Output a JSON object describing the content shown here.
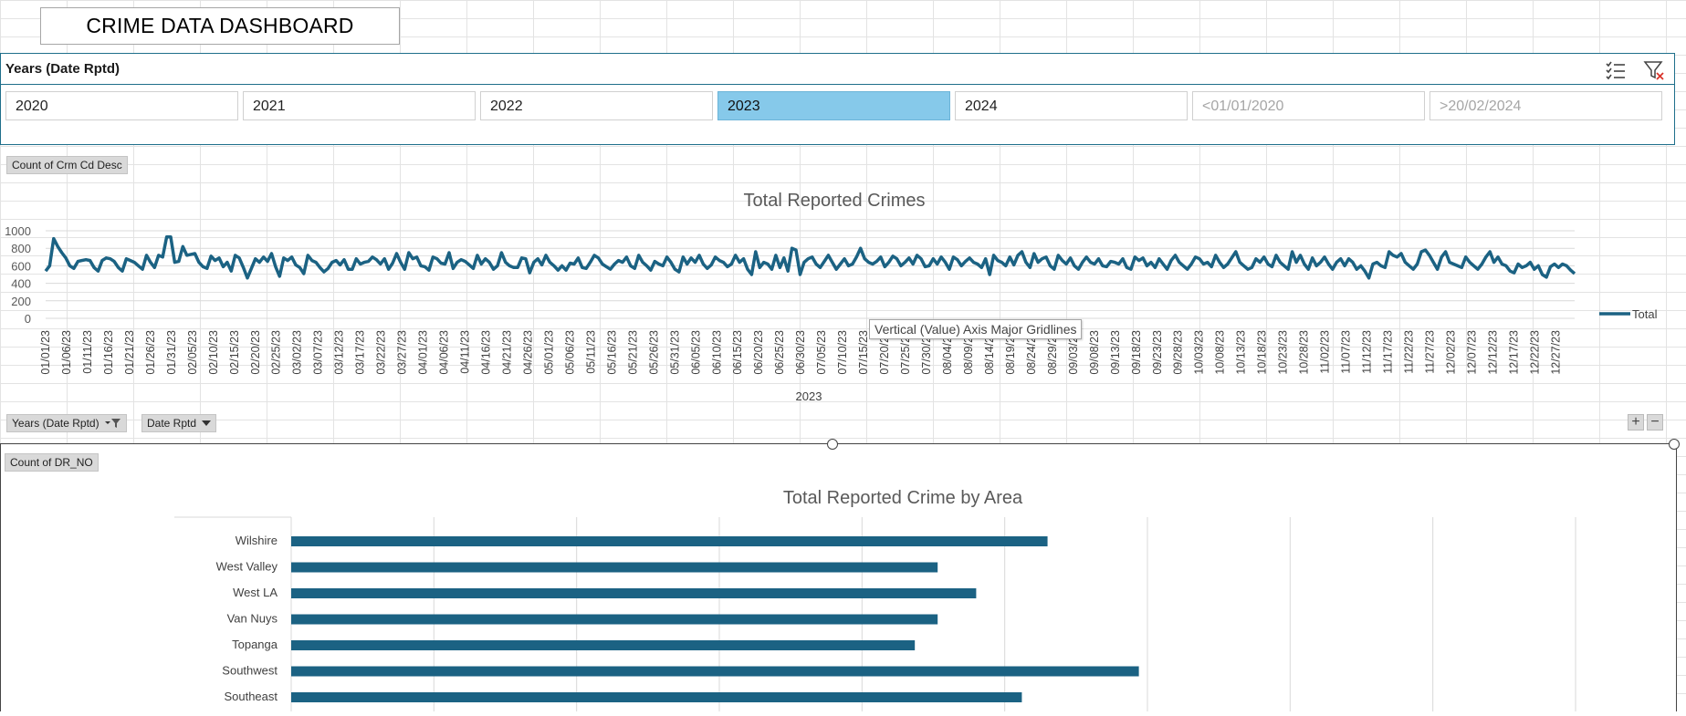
{
  "dashboard_title": "CRIME DATA DASHBOARD",
  "slicer": {
    "header": "Years (Date Rptd)",
    "multi_select_icon": "multi-select-icon",
    "clear_filter_icon": "clear-filter-icon",
    "items": [
      {
        "label": "2020",
        "selected": false,
        "dim": false
      },
      {
        "label": "2021",
        "selected": false,
        "dim": false
      },
      {
        "label": "2022",
        "selected": false,
        "dim": false
      },
      {
        "label": "2023",
        "selected": true,
        "dim": false
      },
      {
        "label": "2024",
        "selected": false,
        "dim": false
      },
      {
        "label": "<01/01/2020",
        "selected": false,
        "dim": true
      },
      {
        "label": ">20/02/2024",
        "selected": false,
        "dim": true
      }
    ],
    "selected_color": "#86c9ea"
  },
  "pivot_fields": {
    "value_field_1": "Count of Crm Cd Desc",
    "row_field_years": "Years (Date Rptd)",
    "row_field_date": "Date Rptd",
    "value_field_2": "Count of DR_NO"
  },
  "tooltip_text": "Vertical (Value) Axis Major Gridlines",
  "colors": {
    "series": "#1b6283",
    "accent_border": "#1f6f8b",
    "selected_slicer": "#86c9ea"
  },
  "chart_data": [
    {
      "type": "line",
      "title": "Total Reported Crimes",
      "xlabel": "2023",
      "ylabel": "",
      "ylim": [
        0,
        1000
      ],
      "yticks": [
        0,
        200,
        400,
        600,
        800,
        1000
      ],
      "grid": true,
      "legend_position": "right",
      "x_start": "01/01/23",
      "x_end": "12/31/23",
      "x_tick_labels": [
        "01/01/23",
        "01/06/23",
        "01/11/23",
        "01/16/23",
        "01/21/23",
        "01/26/23",
        "01/31/23",
        "02/05/23",
        "02/10/23",
        "02/15/23",
        "02/20/23",
        "02/25/23",
        "03/02/23",
        "03/07/23",
        "03/12/23",
        "03/17/23",
        "03/22/23",
        "03/27/23",
        "04/01/23",
        "04/06/23",
        "04/11/23",
        "04/16/23",
        "04/21/23",
        "04/26/23",
        "05/01/23",
        "05/06/23",
        "05/11/23",
        "05/16/23",
        "05/21/23",
        "05/26/23",
        "05/31/23",
        "06/05/23",
        "06/10/23",
        "06/15/23",
        "06/20/23",
        "06/25/23",
        "06/30/23",
        "07/05/23",
        "07/10/23",
        "07/15/23",
        "07/20/23",
        "07/25/23",
        "07/30/23",
        "08/04/23",
        "08/09/23",
        "08/14/23",
        "08/19/23",
        "08/24/23",
        "08/29/23",
        "09/03/23",
        "09/08/23",
        "09/13/23",
        "09/18/23",
        "09/23/23",
        "09/28/23",
        "10/03/23",
        "10/08/23",
        "10/13/23",
        "10/18/23",
        "10/23/23",
        "10/28/23",
        "11/02/23",
        "11/07/23",
        "11/12/23",
        "11/17/23",
        "11/22/23",
        "11/27/23",
        "12/02/23",
        "12/07/23",
        "12/12/23",
        "12/17/23",
        "12/22/23",
        "12/27/23"
      ],
      "series": [
        {
          "name": "Total",
          "values": [
            540,
            600,
            910,
            820,
            750,
            690,
            600,
            570,
            650,
            660,
            670,
            660,
            580,
            540,
            660,
            690,
            680,
            650,
            580,
            540,
            680,
            660,
            640,
            600,
            560,
            720,
            640,
            580,
            720,
            700,
            930,
            930,
            640,
            650,
            820,
            720,
            730,
            740,
            640,
            590,
            570,
            710,
            660,
            690,
            590,
            640,
            540,
            720,
            690,
            580,
            460,
            570,
            680,
            640,
            700,
            650,
            740,
            590,
            480,
            690,
            660,
            700,
            610,
            580,
            510,
            720,
            660,
            640,
            580,
            530,
            570,
            640,
            660,
            610,
            670,
            560,
            560,
            680,
            620,
            640,
            650,
            700,
            670,
            620,
            680,
            560,
            630,
            740,
            640,
            560,
            750,
            680,
            700,
            600,
            590,
            550,
            700,
            680,
            630,
            620,
            750,
            570,
            640,
            670,
            650,
            610,
            570,
            720,
            620,
            680,
            640,
            560,
            600,
            750,
            640,
            600,
            580,
            580,
            690,
            680,
            520,
            640,
            680,
            610,
            720,
            640,
            600,
            550,
            600,
            550,
            630,
            620,
            690,
            580,
            570,
            640,
            720,
            690,
            620,
            590,
            560,
            620,
            660,
            640,
            700,
            600,
            570,
            720,
            640,
            600,
            550,
            650,
            620,
            600,
            700,
            640,
            560,
            530,
            700,
            620,
            690,
            640,
            720,
            620,
            570,
            610,
            700,
            660,
            640,
            590,
            620,
            720,
            640,
            680,
            560,
            500,
            760,
            580,
            640,
            620,
            560,
            720,
            580,
            690,
            540,
            800,
            780,
            500,
            640,
            680,
            700,
            620,
            580,
            650,
            720,
            640,
            560,
            620,
            680,
            600,
            620,
            700,
            800,
            680,
            640,
            620,
            650,
            700,
            590,
            640,
            710,
            680,
            600,
            640,
            690,
            620,
            720,
            680,
            590,
            600,
            680,
            620,
            700,
            640,
            560,
            700,
            670,
            600,
            650,
            690,
            640,
            620,
            580,
            680,
            500,
            720,
            660,
            640,
            600,
            700,
            610,
            720,
            760,
            640,
            580,
            740,
            640,
            680,
            700,
            600,
            560,
            720,
            660,
            620,
            690,
            600,
            560,
            640,
            700,
            640,
            620,
            680,
            600,
            590,
            650,
            640,
            620,
            680,
            580,
            560,
            700,
            660,
            690,
            600,
            640,
            580,
            680,
            620,
            560,
            660,
            720,
            640,
            600,
            560,
            620,
            700,
            680,
            620,
            640,
            590,
            720,
            640,
            580,
            620,
            690,
            760,
            640,
            600,
            560,
            580,
            680,
            640,
            700,
            620,
            590,
            720,
            640,
            600,
            560,
            760,
            640,
            720,
            620,
            560,
            690,
            600,
            640,
            700,
            620,
            560,
            640,
            680,
            600,
            680,
            640,
            560,
            600,
            540,
            460,
            620,
            640,
            600,
            580,
            760,
            720,
            700,
            740,
            640,
            600,
            560,
            620,
            760,
            780,
            720,
            640,
            560,
            700,
            760,
            640,
            620,
            600,
            580,
            700,
            640,
            600,
            560,
            620,
            700,
            760,
            640,
            700,
            620,
            600,
            540,
            520,
            620,
            580,
            600,
            640,
            560,
            600,
            500,
            470,
            590,
            620,
            580,
            620,
            600,
            550,
            510
          ]
        }
      ]
    },
    {
      "type": "bar",
      "orientation": "horizontal",
      "title": "Total Reported Crime by Area",
      "xlim": [
        0,
        9000
      ],
      "categories": [
        "Wilshire",
        "West Valley",
        "West LA",
        "Van Nuys",
        "Topanga",
        "Southwest",
        "Southeast"
      ],
      "values": [
        5300,
        4530,
        4800,
        4530,
        4370,
        5940,
        5120
      ],
      "grid": true
    }
  ]
}
